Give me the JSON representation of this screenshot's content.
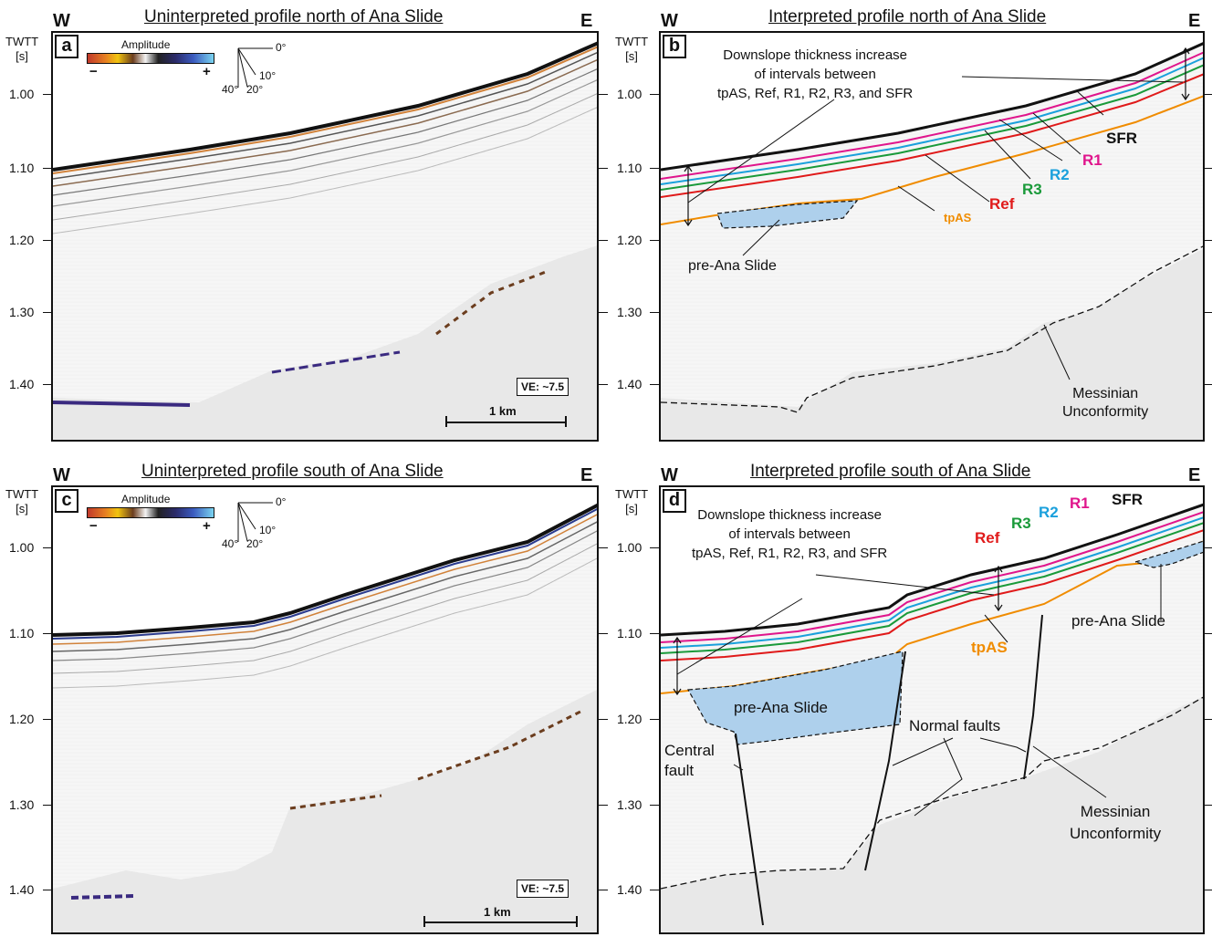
{
  "panels": {
    "a": {
      "letter": "a",
      "title": "Uninterpreted profile north of Ana Slide",
      "west": "W",
      "east": "E",
      "ve": "VE: ~7.5",
      "scale": "1 km"
    },
    "b": {
      "letter": "b",
      "title": "Interpreted profile north of Ana Slide",
      "west": "W",
      "east": "E",
      "thickness_note": "Downslope thickness increase\nof intervals between\ntpAS, Ref, R1, R2, R3, and SFR",
      "labels": {
        "sfr": "SFR",
        "r1": "R1",
        "r2": "R2",
        "r3": "R3",
        "ref": "Ref",
        "tpas": "tpAS",
        "slide": "pre-Ana Slide",
        "unconformity": "Messinian\nUnconformity"
      }
    },
    "c": {
      "letter": "c",
      "title": "Uninterpreted profile south of Ana Slide",
      "west": "W",
      "east": "E",
      "ve": "VE: ~7.5",
      "scale": "1 km"
    },
    "d": {
      "letter": "d",
      "title": "Interpreted profile south of Ana Slide",
      "west": "W",
      "east": "E",
      "thickness_note": "Downslope thickness increase\nof intervals between\ntpAS, Ref, R1, R2, R3, and SFR",
      "labels": {
        "sfr": "SFR",
        "r1": "R1",
        "r2": "R2",
        "r3": "R3",
        "ref": "Ref",
        "tpas": "tpAS",
        "slide_left": "pre-Ana Slide",
        "slide_right": "pre-Ana Slide",
        "faults": "Normal faults",
        "central": "Central\nfault",
        "unconformity": "Messinian\nUnconformity"
      }
    }
  },
  "axis": {
    "title": "TWTT\n[s]",
    "ticks": [
      "1.00",
      "1.10",
      "1.20",
      "1.30",
      "1.40"
    ]
  },
  "amplitude_legend": {
    "title": "Amplitude",
    "minus": "−",
    "plus": "+",
    "angles": [
      "0°",
      "10°",
      "20°",
      "40°"
    ]
  },
  "colors": {
    "sfr": "#111111",
    "r1": "#e0158c",
    "r2": "#1aa0dc",
    "r3": "#1a9a3a",
    "ref": "#e01a1a",
    "tpas": "#f08c00",
    "slide_fill": "#aed0ec"
  }
}
